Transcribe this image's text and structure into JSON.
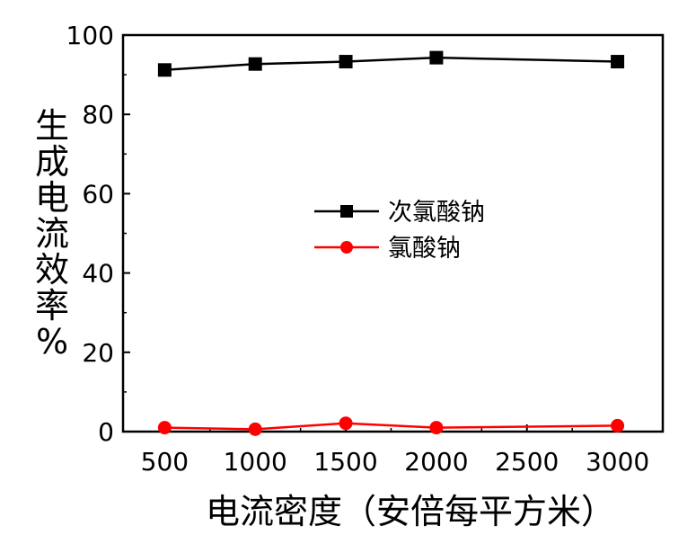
{
  "chart_data": {
    "type": "line",
    "title": "",
    "xlabel": "电流密度（安倍每平方米）",
    "ylabel": "生成电流效率%",
    "x": [
      500,
      1000,
      1500,
      2000,
      3000
    ],
    "xticks": [
      "500",
      "1000",
      "1500",
      "2000",
      "2500",
      "3000"
    ],
    "xtick_values": [
      500,
      1000,
      1500,
      2000,
      2500,
      3000
    ],
    "yticks": [
      "0",
      "20",
      "40",
      "60",
      "80",
      "100"
    ],
    "ytick_values": [
      0,
      20,
      40,
      60,
      80,
      100
    ],
    "xlim": [
      270,
      3250
    ],
    "ylim": [
      0,
      100
    ],
    "grid": false,
    "legend_position": "center",
    "series": [
      {
        "name": "次氯酸钠",
        "color": "#000000",
        "marker": "square",
        "values": [
          91.2,
          92.7,
          93.3,
          94.3,
          93.3
        ]
      },
      {
        "name": "氯酸钠",
        "color": "#ff0000",
        "marker": "circle",
        "values": [
          1.0,
          0.6,
          2.1,
          1.0,
          1.5
        ]
      }
    ]
  }
}
